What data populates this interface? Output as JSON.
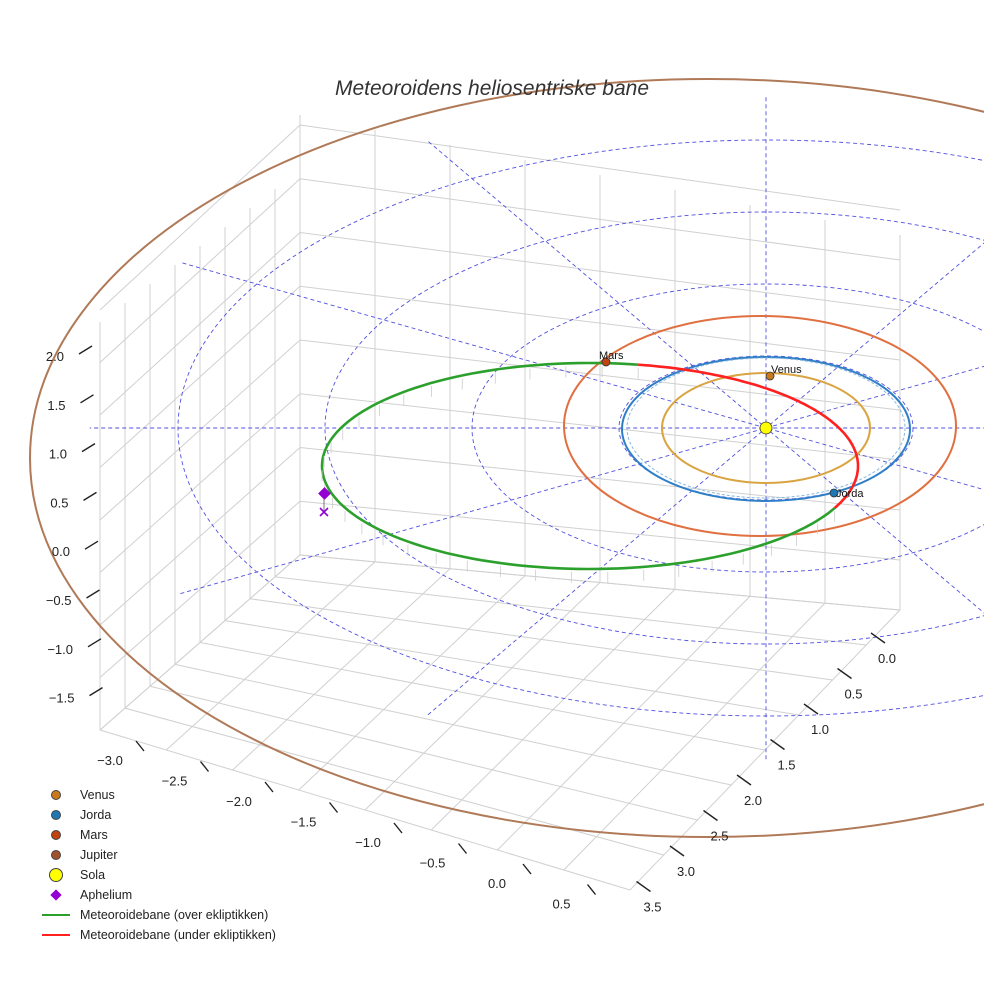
{
  "chart_data": {
    "type": "3d-orbit",
    "title": "Meteoroidens heliosentriske bane",
    "x_ticks": [
      "−3.0",
      "−2.5",
      "−2.0",
      "−1.5",
      "−1.0",
      "−0.5",
      "0.0",
      "0.5"
    ],
    "y_ticks": [
      "0.0",
      "0.5",
      "1.0",
      "1.5",
      "2.0",
      "2.5",
      "3.0",
      "3.5"
    ],
    "z_ticks": [
      "2.0",
      "1.5",
      "1.0",
      "0.5",
      "0.0",
      "−0.5",
      "−1.0",
      "−1.5"
    ],
    "xlim": [
      -3.1,
      0.7
    ],
    "ylim": [
      -0.25,
      3.6
    ],
    "zlim": [
      -1.8,
      2.2
    ],
    "orbits": [
      {
        "name": "Venus",
        "a": 0.72,
        "color": "#d9a441"
      },
      {
        "name": "Jorda",
        "a": 1.0,
        "color": "#2f7fc7"
      },
      {
        "name": "Mars",
        "a": 1.52,
        "color": "#e07040"
      },
      {
        "name": "Jupiter",
        "a": 5.2,
        "color": "#b07a58"
      }
    ],
    "planet_labels": [
      "Venus",
      "Jorda",
      "Mars"
    ],
    "meteoroid_orbit": {
      "perihelion_AU": 0.72,
      "aphelion_AU": 2.68
    },
    "legend": [
      {
        "label": "Venus",
        "symbol": "dot",
        "color": "#c97a1c"
      },
      {
        "label": "Jorda",
        "symbol": "dot",
        "color": "#1f77b4"
      },
      {
        "label": "Mars",
        "symbol": "dot",
        "color": "#c1440e"
      },
      {
        "label": "Jupiter",
        "symbol": "dot",
        "color": "#a0522d"
      },
      {
        "label": "Sola",
        "symbol": "bigdot",
        "color": "#ffff00"
      },
      {
        "label": "Aphelium",
        "symbol": "diamond",
        "color": "#9400d3"
      },
      {
        "label": "Meteoroidebane (over ekliptikken)",
        "symbol": "line",
        "color": "#2ca02c"
      },
      {
        "label": "Meteoroidebane (under ekliptikken)",
        "symbol": "line",
        "color": "#ff2020"
      }
    ]
  }
}
